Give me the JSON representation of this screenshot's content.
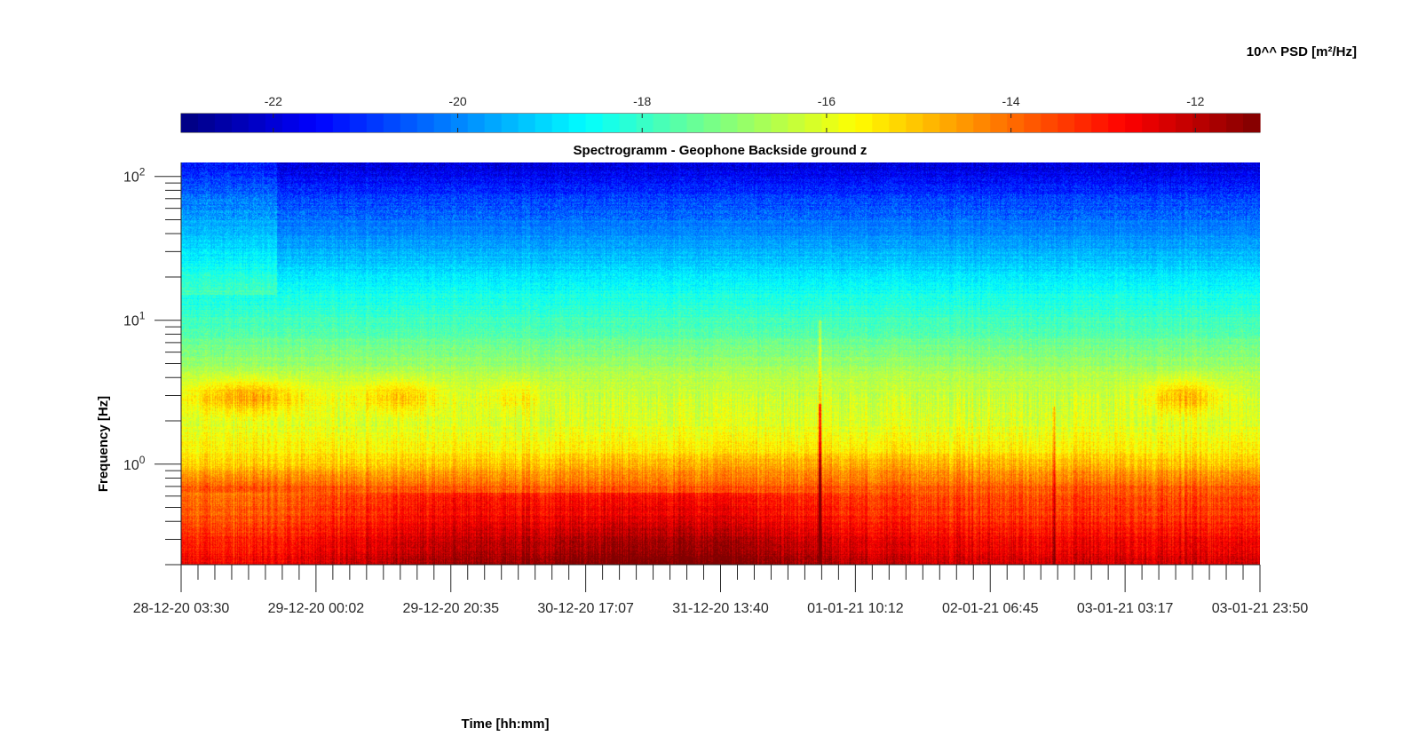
{
  "chart_data": {
    "type": "heatmap",
    "title": "Spectrogramm - Geophone Backside ground z",
    "xlabel": "Time [hh:mm]",
    "ylabel": "Frequency [Hz]",
    "colorbar_label": "10^^ PSD [m²/Hz]",
    "colorbar_location": "top",
    "colormap": "jet",
    "color_range": [
      -23,
      -11.3
    ],
    "colorbar_ticks": [
      -22,
      -20,
      -18,
      -16,
      -14,
      -12
    ],
    "colorbar_tick_labels": [
      "-22",
      "-20",
      "-18",
      "-16",
      "-14",
      "-12"
    ],
    "y_scale": "log",
    "y_range_hz": [
      0.2,
      125
    ],
    "y_major_ticks": [
      {
        "value": 1,
        "base": "10",
        "exp": "0"
      },
      {
        "value": 10,
        "base": "10",
        "exp": "1"
      },
      {
        "value": 100,
        "base": "10",
        "exp": "2"
      }
    ],
    "x_range": [
      "28-12-20 03:30",
      "03-01-21 23:50"
    ],
    "x_ticks": [
      "28-12-20 03:30",
      "29-12-20 00:02",
      "29-12-20 20:35",
      "30-12-20 17:07",
      "31-12-20 13:40",
      "01-01-21 10:12",
      "02-01-21 06:45",
      "03-01-21 03:17",
      "03-01-21 23:50"
    ],
    "x_minor_ticks_per_major": 8,
    "psd_profile_by_frequency": [
      {
        "hz": 125,
        "psd": -22.0
      },
      {
        "hz": 60,
        "psd": -20.5
      },
      {
        "hz": 30,
        "psd": -19.5
      },
      {
        "hz": 15,
        "psd": -18.4
      },
      {
        "hz": 8,
        "psd": -17.6
      },
      {
        "hz": 4,
        "psd": -16.5
      },
      {
        "hz": 2,
        "psd": -16.1
      },
      {
        "hz": 1,
        "psd": -15.3
      },
      {
        "hz": 0.7,
        "psd": -13.8
      },
      {
        "hz": 0.4,
        "psd": -13.2
      },
      {
        "hz": 0.2,
        "psd": -12.2
      }
    ],
    "notable_events": [
      {
        "time": "01-01-21 00:36",
        "description": "broadband transient up to ~8 Hz"
      },
      {
        "time": "02-01-21 10:50",
        "description": "weaker transient"
      },
      {
        "time": "30-12-20 21:00 to 31-12-20 14:00",
        "description": "strongest low-frequency energy below 0.4 Hz"
      }
    ]
  }
}
